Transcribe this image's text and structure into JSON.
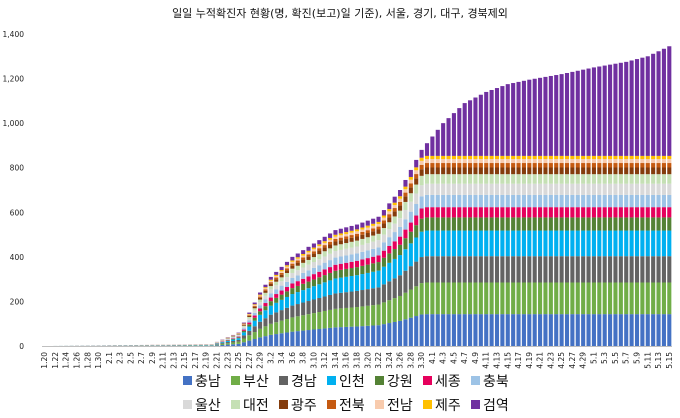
{
  "chart_data": {
    "type": "bar",
    "stacked": true,
    "title": "일일 누적확진자 현황(명, 확진(보고)일 기준), 서울, 경기, 대구, 경북제외",
    "xlabel": "",
    "ylabel": "",
    "ylim": [
      0,
      1400
    ],
    "yticks": [
      0,
      200,
      400,
      600,
      800,
      1000,
      1200,
      1400
    ],
    "ytick_labels": [
      "0",
      "200",
      "400",
      "600",
      "800",
      "1,000",
      "1,200",
      "1,400"
    ],
    "grid": false,
    "legend_position": "bottom",
    "first_date": "2020-01-20",
    "num_days": 117,
    "tick_labels": [
      "1.20",
      "1.22",
      "1.24",
      "1.26",
      "1.28",
      "1.30",
      "2.1",
      "2.3",
      "2.5",
      "2.7",
      "2.9",
      "2.11",
      "2.13",
      "2.15",
      "2.17",
      "2.19",
      "2.21",
      "2.23",
      "2.25",
      "2.27",
      "2.29",
      "3.2",
      "3.4",
      "3.6",
      "3.8",
      "3.10",
      "3.12",
      "3.14",
      "3.16",
      "3.18",
      "3.20",
      "3.22",
      "3.24",
      "3.26",
      "3.28",
      "3.30",
      "4.1",
      "4.3",
      "4.5",
      "4.7",
      "4.9",
      "4.11",
      "4.13",
      "4.15",
      "4.17",
      "4.19",
      "4.21",
      "4.23",
      "4.25",
      "4.27",
      "4.29",
      "5.1",
      "5.3",
      "5.5",
      "5.7",
      "5.9",
      "5.11",
      "5.13",
      "5.15"
    ],
    "regions": [
      {
        "name": "충남",
        "color": "#4472C4"
      },
      {
        "name": "부산",
        "color": "#70AD47"
      },
      {
        "name": "경남",
        "color": "#636363"
      },
      {
        "name": "인천",
        "color": "#00B0F0"
      },
      {
        "name": "강원",
        "color": "#548235"
      },
      {
        "name": "세종",
        "color": "#E6005C"
      },
      {
        "name": "충북",
        "color": "#9DC3E6"
      },
      {
        "name": "울산",
        "color": "#D9D9D9"
      },
      {
        "name": "대전",
        "color": "#C5E0B4"
      },
      {
        "name": "광주",
        "color": "#843C0C"
      },
      {
        "name": "전북",
        "color": "#C55A11"
      },
      {
        "name": "전남",
        "color": "#F8CBAD"
      },
      {
        "name": "제주",
        "color": "#FFC000"
      },
      {
        "name": "검역",
        "color": "#7030A0"
      }
    ],
    "final_values": [
      143,
      142,
      118,
      115,
      59,
      46,
      55,
      50,
      43,
      30,
      20,
      18,
      14,
      490
    ],
    "key_dates_total": [
      {
        "date": "1.20",
        "total": 0
      },
      {
        "date": "2.20",
        "total": 8
      },
      {
        "date": "2.25",
        "total": 60
      },
      {
        "date": "2.29",
        "total": 240
      },
      {
        "date": "3.2",
        "total": 310
      },
      {
        "date": "3.6",
        "total": 400
      },
      {
        "date": "3.10",
        "total": 460
      },
      {
        "date": "3.14",
        "total": 520
      },
      {
        "date": "3.18",
        "total": 545
      },
      {
        "date": "3.22",
        "total": 580
      },
      {
        "date": "3.26",
        "total": 700
      },
      {
        "date": "3.30",
        "total": 880
      },
      {
        "date": "4.3",
        "total": 1000
      },
      {
        "date": "4.7",
        "total": 1090
      },
      {
        "date": "4.11",
        "total": 1140
      },
      {
        "date": "4.15",
        "total": 1175
      },
      {
        "date": "4.19",
        "total": 1195
      },
      {
        "date": "4.25",
        "total": 1220
      },
      {
        "date": "5.1",
        "total": 1250
      },
      {
        "date": "5.7",
        "total": 1275
      },
      {
        "date": "5.11",
        "total": 1300
      },
      {
        "date": "5.15",
        "total": 1345
      }
    ]
  }
}
